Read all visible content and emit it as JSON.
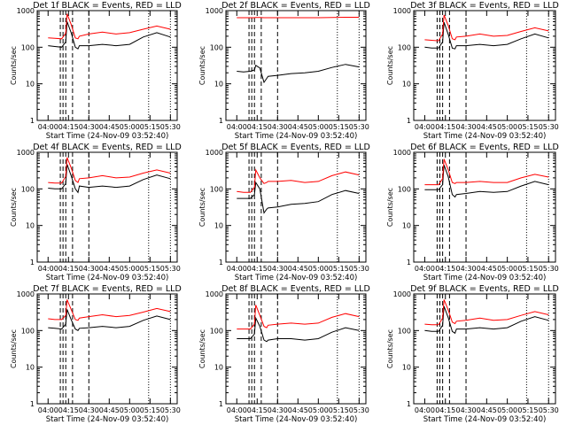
{
  "common": {
    "xlabel": "Start Time (24-Nov-09 03:52:40)",
    "ylabel": "Counts/sec",
    "x_ticks": [
      "04:00",
      "04:15",
      "04:30",
      "04:45",
      "05:00",
      "05:15",
      "05:30"
    ],
    "y_ticks": [
      "1",
      "10",
      "100",
      "1000"
    ],
    "ylim": [
      1,
      1000
    ],
    "y_scale": "log",
    "colors": {
      "events": "#000000",
      "lld": "#ff0000"
    }
  },
  "chart_data": [
    {
      "type": "line",
      "title": "Det 1f BLACK = Events, RED = LLD",
      "series": [
        {
          "name": "Events",
          "x": [
            "04:00",
            "04:05",
            "04:10",
            "04:13",
            "04:14",
            "04:17",
            "04:20",
            "04:22",
            "04:23",
            "04:30",
            "04:40",
            "04:50",
            "05:00",
            "05:10",
            "05:20",
            "05:30"
          ],
          "values": [
            110,
            105,
            100,
            140,
            500,
            250,
            100,
            90,
            110,
            110,
            120,
            110,
            120,
            190,
            250,
            190
          ]
        },
        {
          "name": "LLD",
          "x": [
            "04:00",
            "04:05",
            "04:10",
            "04:13",
            "04:14",
            "04:17",
            "04:20",
            "04:22",
            "04:23",
            "04:30",
            "04:40",
            "04:50",
            "05:00",
            "05:10",
            "05:20",
            "05:30"
          ],
          "values": [
            180,
            175,
            170,
            240,
            820,
            420,
            180,
            170,
            200,
            230,
            260,
            230,
            250,
            310,
            380,
            310
          ]
        }
      ]
    },
    {
      "type": "line",
      "title": "Det 2f BLACK = Events, RED = LLD",
      "series": [
        {
          "name": "Events",
          "x": [
            "04:00",
            "04:05",
            "04:10",
            "04:13",
            "04:14",
            "04:17",
            "04:20",
            "04:22",
            "04:23",
            "04:30",
            "04:40",
            "04:50",
            "05:00",
            "05:10",
            "05:20",
            "05:30"
          ],
          "values": [
            22,
            21,
            22,
            24,
            32,
            27,
            11,
            14,
            16,
            17,
            19,
            20,
            22,
            28,
            34,
            29
          ]
        },
        {
          "name": "LLD",
          "x": [
            "04:00",
            "04:05",
            "04:10",
            "04:13",
            "04:14",
            "04:17",
            "04:20",
            "04:22",
            "04:23",
            "04:30",
            "04:40",
            "04:50",
            "05:00",
            "05:10",
            "05:20",
            "05:30"
          ],
          "values": [
            640,
            640,
            640,
            640,
            650,
            650,
            640,
            640,
            640,
            640,
            640,
            640,
            640,
            650,
            660,
            660
          ]
        }
      ]
    },
    {
      "type": "line",
      "title": "Det 3f BLACK = Events, RED = LLD",
      "series": [
        {
          "name": "Events",
          "x": [
            "04:00",
            "04:05",
            "04:10",
            "04:13",
            "04:14",
            "04:17",
            "04:20",
            "04:22",
            "04:23",
            "04:30",
            "04:40",
            "04:50",
            "05:00",
            "05:10",
            "05:20",
            "05:30"
          ],
          "values": [
            100,
            95,
            95,
            140,
            480,
            230,
            95,
            90,
            110,
            110,
            120,
            110,
            120,
            170,
            230,
            180
          ]
        },
        {
          "name": "LLD",
          "x": [
            "04:00",
            "04:05",
            "04:10",
            "04:13",
            "04:14",
            "04:17",
            "04:20",
            "04:22",
            "04:23",
            "04:30",
            "04:40",
            "04:50",
            "05:00",
            "05:10",
            "05:20",
            "05:30"
          ],
          "values": [
            160,
            155,
            150,
            230,
            760,
            400,
            170,
            160,
            190,
            200,
            230,
            200,
            210,
            270,
            340,
            280
          ]
        }
      ]
    },
    {
      "type": "line",
      "title": "Det 4f BLACK = Events, RED = LLD",
      "series": [
        {
          "name": "Events",
          "x": [
            "04:00",
            "04:05",
            "04:10",
            "04:13",
            "04:14",
            "04:17",
            "04:20",
            "04:22",
            "04:23",
            "04:30",
            "04:40",
            "04:50",
            "05:00",
            "05:10",
            "05:20",
            "05:30"
          ],
          "values": [
            105,
            100,
            100,
            140,
            470,
            230,
            100,
            80,
            120,
            110,
            120,
            110,
            120,
            180,
            240,
            190
          ]
        },
        {
          "name": "LLD",
          "x": [
            "04:00",
            "04:05",
            "04:10",
            "04:13",
            "04:14",
            "04:17",
            "04:20",
            "04:22",
            "04:23",
            "04:30",
            "04:40",
            "04:50",
            "05:00",
            "05:10",
            "05:20",
            "05:30"
          ],
          "values": [
            150,
            145,
            145,
            220,
            720,
            380,
            170,
            150,
            190,
            200,
            230,
            200,
            210,
            270,
            330,
            270
          ]
        }
      ]
    },
    {
      "type": "line",
      "title": "Det 5f BLACK = Events, RED = LLD",
      "series": [
        {
          "name": "Events",
          "x": [
            "04:00",
            "04:05",
            "04:10",
            "04:13",
            "04:14",
            "04:17",
            "04:20",
            "04:22",
            "04:23",
            "04:30",
            "04:40",
            "04:50",
            "05:00",
            "05:10",
            "05:20",
            "05:30"
          ],
          "values": [
            55,
            55,
            55,
            70,
            150,
            100,
            22,
            28,
            30,
            32,
            38,
            40,
            45,
            70,
            90,
            75
          ]
        },
        {
          "name": "LLD",
          "x": [
            "04:00",
            "04:05",
            "04:10",
            "04:13",
            "04:14",
            "04:17",
            "04:20",
            "04:22",
            "04:23",
            "04:30",
            "04:40",
            "04:50",
            "05:00",
            "05:10",
            "05:20",
            "05:30"
          ],
          "values": [
            85,
            80,
            80,
            110,
            330,
            200,
            140,
            150,
            160,
            160,
            170,
            150,
            160,
            230,
            290,
            240
          ]
        }
      ]
    },
    {
      "type": "line",
      "title": "Det 6f BLACK = Events, RED = LLD",
      "series": [
        {
          "name": "Events",
          "x": [
            "04:00",
            "04:05",
            "04:10",
            "04:13",
            "04:14",
            "04:17",
            "04:20",
            "04:22",
            "04:23",
            "04:30",
            "04:40",
            "04:50",
            "05:00",
            "05:10",
            "05:20",
            "05:30"
          ],
          "values": [
            95,
            95,
            95,
            130,
            450,
            220,
            70,
            60,
            70,
            75,
            85,
            80,
            85,
            120,
            160,
            130
          ]
        },
        {
          "name": "LLD",
          "x": [
            "04:00",
            "04:05",
            "04:10",
            "04:13",
            "04:14",
            "04:17",
            "04:20",
            "04:22",
            "04:23",
            "04:30",
            "04:40",
            "04:50",
            "05:00",
            "05:10",
            "05:20",
            "05:30"
          ],
          "values": [
            130,
            130,
            130,
            190,
            650,
            340,
            150,
            140,
            150,
            150,
            160,
            150,
            150,
            200,
            250,
            210
          ]
        }
      ]
    },
    {
      "type": "line",
      "title": "Det 7f BLACK = Events, RED = LLD",
      "series": [
        {
          "name": "Events",
          "x": [
            "04:00",
            "04:05",
            "04:10",
            "04:13",
            "04:14",
            "04:17",
            "04:20",
            "04:22",
            "04:23",
            "04:30",
            "04:40",
            "04:50",
            "05:00",
            "05:10",
            "05:20",
            "05:30"
          ],
          "values": [
            120,
            115,
            110,
            150,
            380,
            200,
            110,
            100,
            115,
            120,
            130,
            120,
            130,
            190,
            250,
            200
          ]
        },
        {
          "name": "LLD",
          "x": [
            "04:00",
            "04:05",
            "04:10",
            "04:13",
            "04:14",
            "04:17",
            "04:20",
            "04:22",
            "04:23",
            "04:30",
            "04:40",
            "04:50",
            "05:00",
            "05:10",
            "05:20",
            "05:30"
          ],
          "values": [
            210,
            200,
            200,
            260,
            700,
            380,
            200,
            190,
            220,
            240,
            270,
            240,
            260,
            320,
            400,
            330
          ]
        }
      ]
    },
    {
      "type": "line",
      "title": "Det 8f BLACK = Events, RED = LLD",
      "series": [
        {
          "name": "Events",
          "x": [
            "04:00",
            "04:05",
            "04:10",
            "04:13",
            "04:14",
            "04:17",
            "04:20",
            "04:22",
            "04:23",
            "04:30",
            "04:40",
            "04:50",
            "05:00",
            "05:10",
            "05:20",
            "05:30"
          ],
          "values": [
            60,
            60,
            60,
            80,
            220,
            130,
            55,
            50,
            55,
            60,
            60,
            55,
            60,
            90,
            120,
            100
          ]
        },
        {
          "name": "LLD",
          "x": [
            "04:00",
            "04:05",
            "04:10",
            "04:13",
            "04:14",
            "04:17",
            "04:20",
            "04:22",
            "04:23",
            "04:30",
            "04:40",
            "04:50",
            "05:00",
            "05:10",
            "05:20",
            "05:30"
          ],
          "values": [
            110,
            110,
            110,
            150,
            500,
            260,
            130,
            120,
            140,
            150,
            160,
            150,
            160,
            230,
            290,
            240
          ]
        }
      ]
    },
    {
      "type": "line",
      "title": "Det 9f BLACK = Events, RED = LLD",
      "series": [
        {
          "name": "Events",
          "x": [
            "04:00",
            "04:05",
            "04:10",
            "04:13",
            "04:14",
            "04:17",
            "04:20",
            "04:22",
            "04:23",
            "04:30",
            "04:40",
            "04:50",
            "05:00",
            "05:10",
            "05:20",
            "05:30"
          ],
          "values": [
            100,
            95,
            95,
            140,
            460,
            230,
            95,
            85,
            110,
            110,
            120,
            110,
            120,
            180,
            240,
            190
          ]
        },
        {
          "name": "LLD",
          "x": [
            "04:00",
            "04:05",
            "04:10",
            "04:13",
            "04:14",
            "04:17",
            "04:20",
            "04:22",
            "04:23",
            "04:30",
            "04:40",
            "04:50",
            "05:00",
            "05:10",
            "05:20",
            "05:30"
          ],
          "values": [
            150,
            145,
            145,
            220,
            700,
            370,
            170,
            155,
            180,
            190,
            220,
            190,
            200,
            260,
            330,
            270
          ]
        }
      ]
    }
  ]
}
